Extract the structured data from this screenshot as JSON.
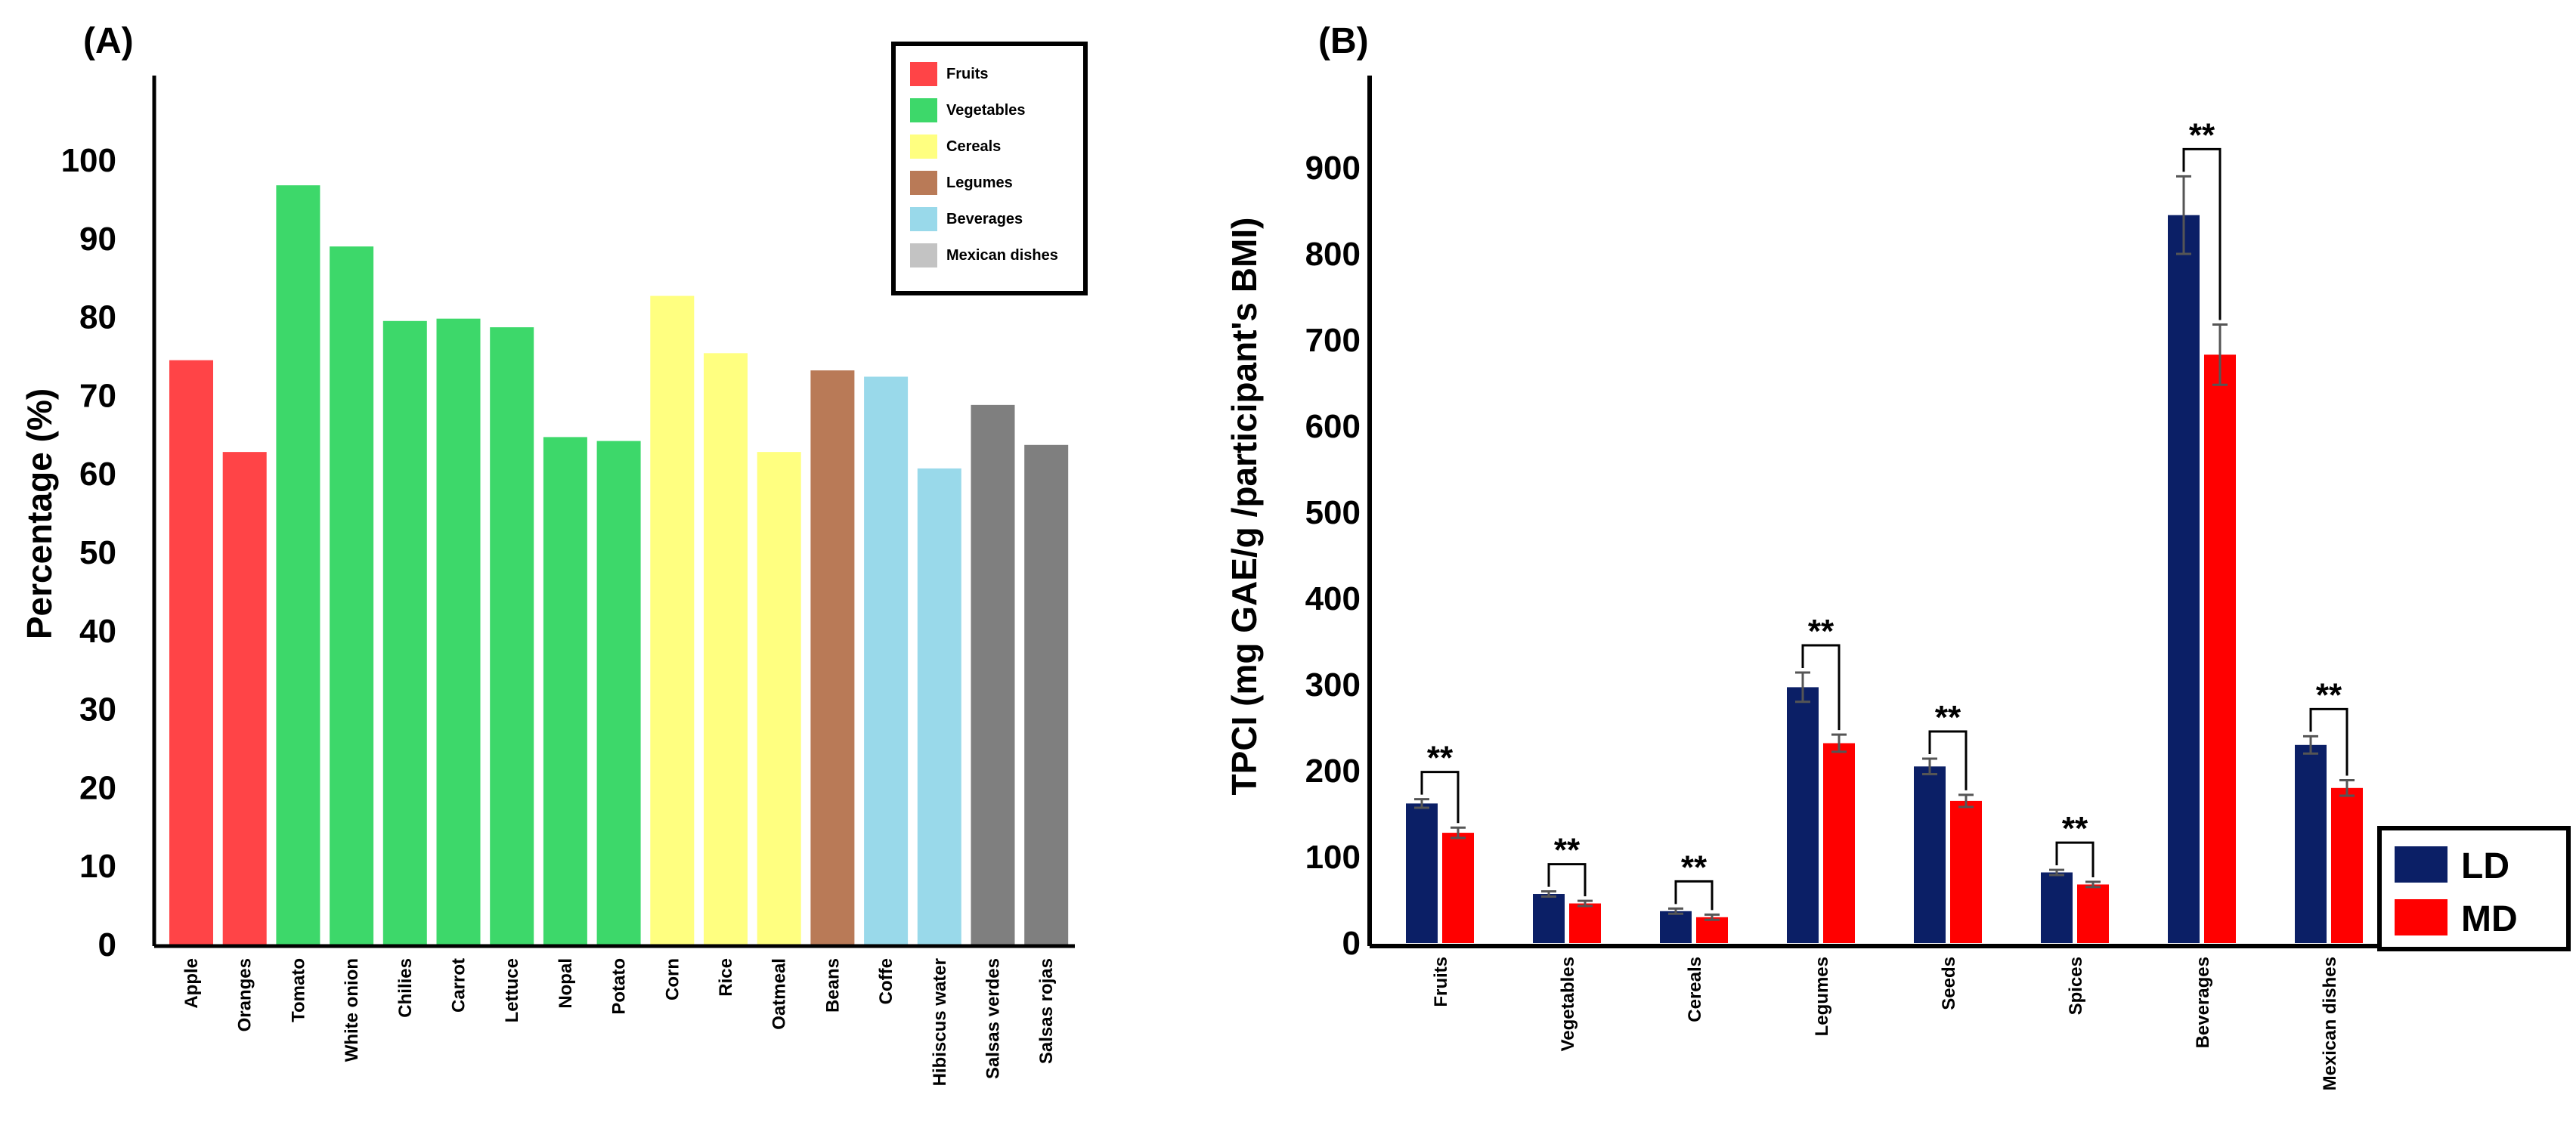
{
  "chart_data": [
    {
      "type": "bar",
      "panel_label": "(A)",
      "title": "",
      "xlabel": "",
      "ylabel": "Percentage (%)",
      "ylim": [
        0,
        110
      ],
      "yticks": [
        0,
        10,
        20,
        30,
        40,
        50,
        60,
        70,
        80,
        90,
        100
      ],
      "grid": false,
      "legend_position": "top-right",
      "legend": [
        {
          "label": "Fruits",
          "color": "#ff4447"
        },
        {
          "label": "Vegetables",
          "color": "#3dd86a"
        },
        {
          "label": "Cereals",
          "color": "#ffff80"
        },
        {
          "label": "Legumes",
          "color": "#b97a57"
        },
        {
          "label": "Beverages",
          "color": "#99d9ea"
        },
        {
          "label": "Mexican dishes",
          "color": "#c3c3c3"
        }
      ],
      "categories": [
        "Apple",
        "Oranges",
        "Tomato",
        "White onion",
        "Chilies",
        "Carrot",
        "Lettuce",
        "Nopal",
        "Potato",
        "Corn",
        "Rice",
        "Oatmeal",
        "Beans",
        "Coffe",
        "Hibiscus water",
        "Salsas verdes",
        "Salsas rojas"
      ],
      "values": [
        74.5,
        62.8,
        96.8,
        89.0,
        79.5,
        79.8,
        78.7,
        64.7,
        64.2,
        82.7,
        75.4,
        62.8,
        73.2,
        72.4,
        60.7,
        68.8,
        63.7
      ],
      "bar_groups": [
        "Fruits",
        "Fruits",
        "Vegetables",
        "Vegetables",
        "Vegetables",
        "Vegetables",
        "Vegetables",
        "Vegetables",
        "Vegetables",
        "Cereals",
        "Cereals",
        "Cereals",
        "Legumes",
        "Beverages",
        "Beverages",
        "Mexican dishes",
        "Mexican dishes"
      ],
      "bar_colors": [
        "#ff4447",
        "#ff4447",
        "#3dd86a",
        "#3dd86a",
        "#3dd86a",
        "#3dd86a",
        "#3dd86a",
        "#3dd86a",
        "#3dd86a",
        "#ffff80",
        "#ffff80",
        "#ffff80",
        "#b97a57",
        "#99d9ea",
        "#99d9ea",
        "#7f7f7f",
        "#7f7f7f"
      ]
    },
    {
      "type": "bar",
      "panel_label": "(B)",
      "title": "",
      "xlabel": "",
      "ylabel": "TPCI (mg GAE/g /participant's BMI)",
      "ylim": [
        0,
        1000
      ],
      "yticks": [
        0,
        100,
        200,
        300,
        400,
        500,
        600,
        700,
        800,
        900
      ],
      "grid": false,
      "legend_position": "bottom-right",
      "categories": [
        "Fruits",
        "Vegetables",
        "Cereals",
        "Legumes",
        "Seeds",
        "Spices",
        "Beverages",
        "Mexican dishes"
      ],
      "significance_label": "**",
      "series": [
        {
          "name": "LD",
          "color": "#0b1f66",
          "values": [
            162,
            57,
            37,
            297,
            205,
            82,
            845,
            230
          ],
          "errors": [
            5,
            3,
            3,
            17,
            9,
            3,
            45,
            10
          ]
        },
        {
          "name": "MD",
          "color": "#ff0000",
          "values": [
            128,
            46,
            30,
            232,
            165,
            68,
            683,
            180
          ],
          "errors": [
            6,
            3,
            3,
            10,
            7,
            3,
            35,
            9
          ]
        }
      ]
    }
  ]
}
